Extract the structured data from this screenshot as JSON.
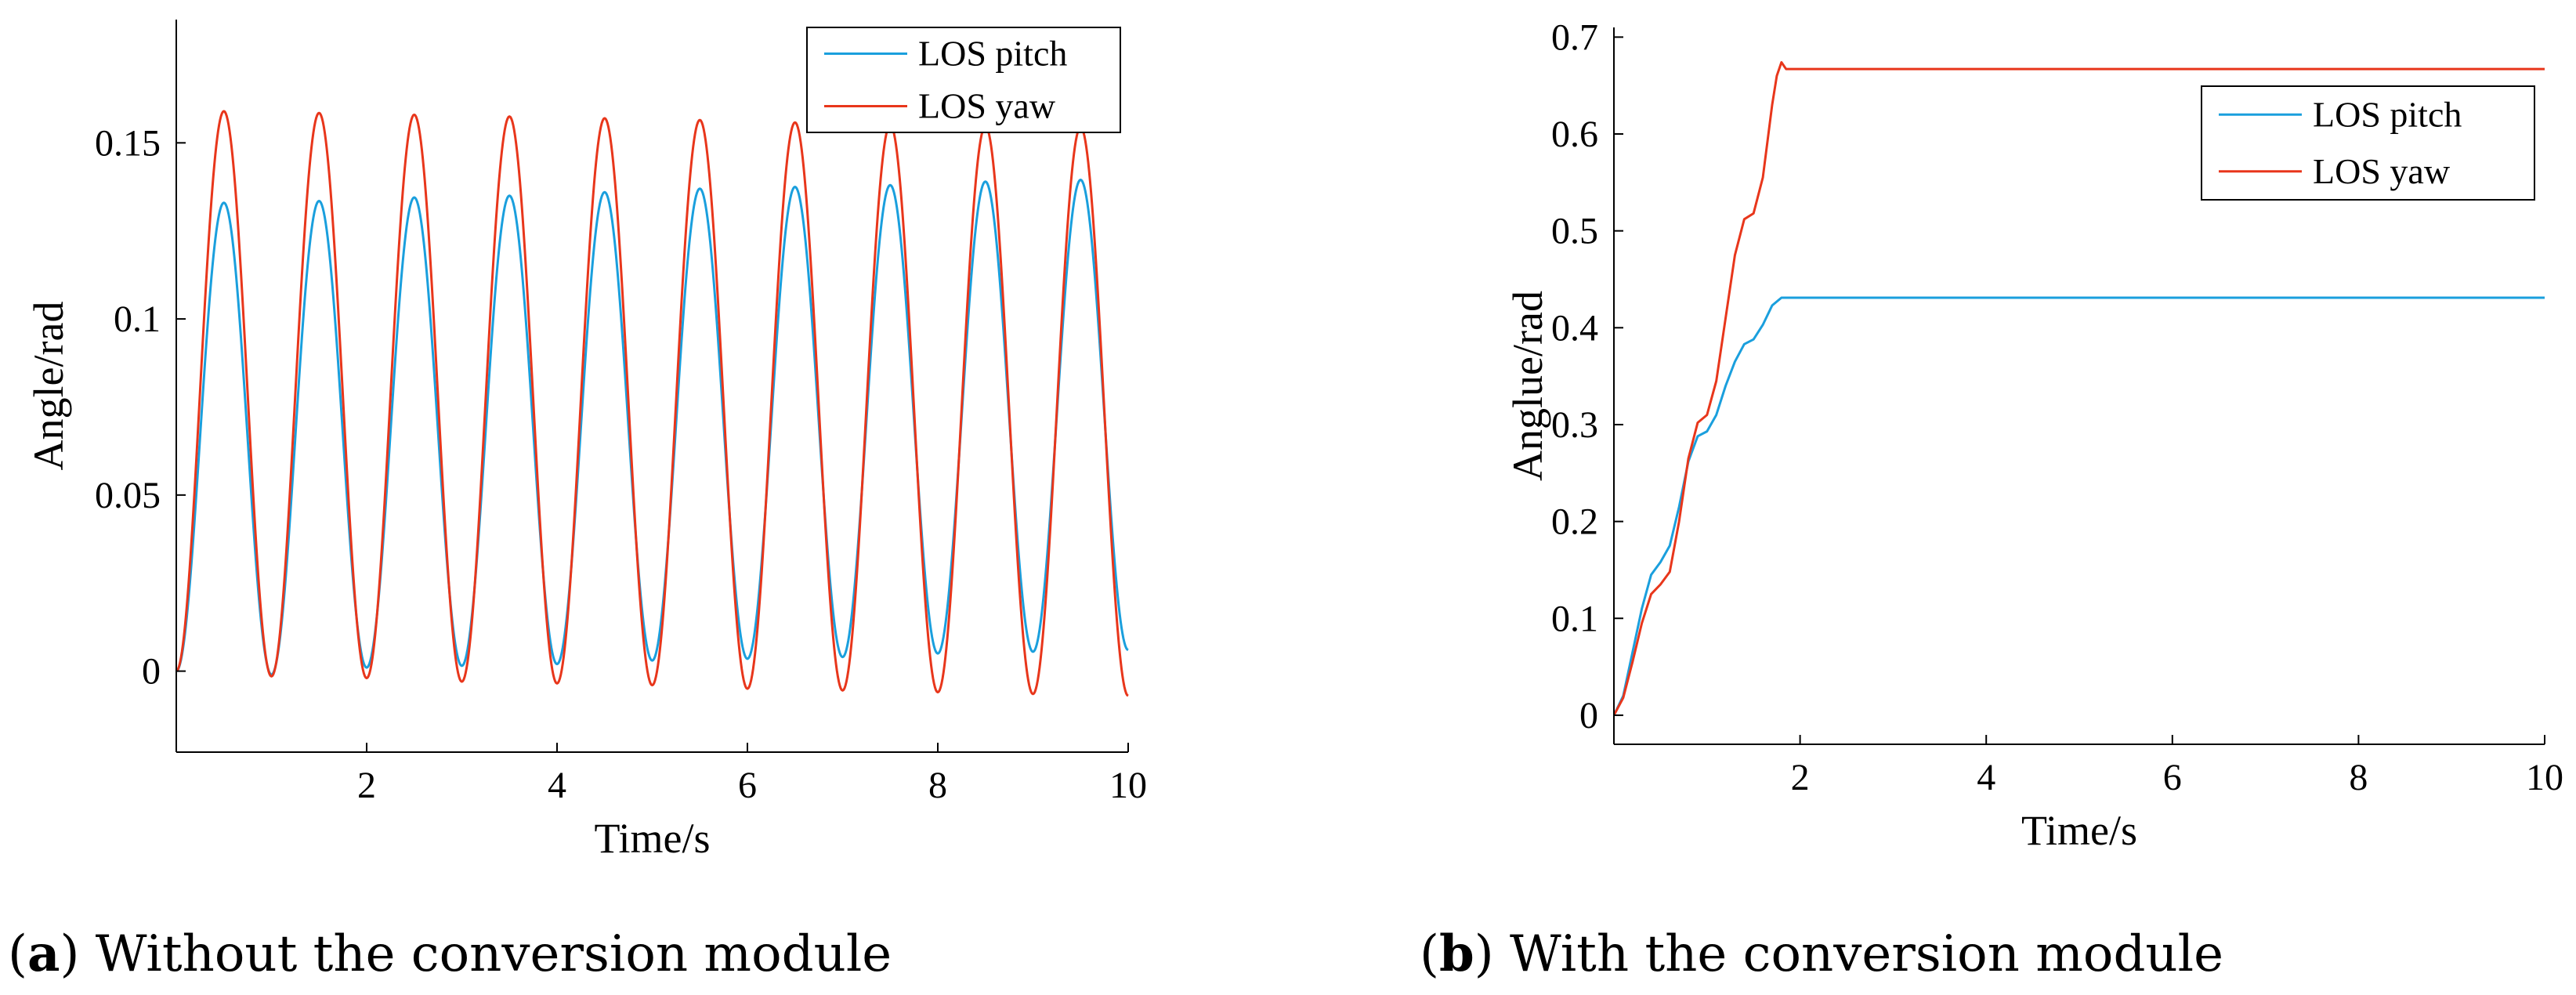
{
  "colors": {
    "pitch": "#1a9fdd",
    "yaw": "#e8361b",
    "axis": "#000000"
  },
  "captions": {
    "a": {
      "letter": "a",
      "text": "Without the conversion module"
    },
    "b": {
      "letter": "b",
      "text": "With the conversion module"
    }
  },
  "chart_data": [
    {
      "id": "a",
      "type": "line",
      "title": "",
      "xlabel": "Time/s",
      "ylabel": "Angle/rad",
      "xlim": [
        0,
        10
      ],
      "ylim": [
        -0.023,
        0.185
      ],
      "xticks": [
        2,
        4,
        6,
        8,
        10
      ],
      "yticks": [
        0,
        0.05,
        0.1,
        0.15
      ],
      "ytick_labels": [
        "0",
        "0.05",
        "0.1",
        "0.15"
      ],
      "grid": false,
      "legend_position": "top-right",
      "model": "sinusoid",
      "period": 1.0,
      "series": [
        {
          "name": "LOS pitch",
          "color_key": "pitch",
          "peaks": [
            0.133,
            0.1335,
            0.1345,
            0.135,
            0.136,
            0.137,
            0.1375,
            0.138,
            0.139,
            0.1395
          ],
          "troughs": [
            -0.001,
            0.001,
            0.0015,
            0.002,
            0.003,
            0.0035,
            0.004,
            0.005,
            0.0055
          ],
          "end_value": 0.006
        },
        {
          "name": "LOS yaw",
          "color_key": "yaw",
          "peaks": [
            0.159,
            0.1585,
            0.158,
            0.1575,
            0.157,
            0.1565,
            0.1558,
            0.1552,
            0.1548,
            0.1545
          ],
          "troughs": [
            -0.0015,
            -0.002,
            -0.003,
            -0.0035,
            -0.004,
            -0.005,
            -0.0055,
            -0.006,
            -0.0065
          ],
          "end_value": -0.007
        }
      ]
    },
    {
      "id": "b",
      "type": "line",
      "title": "",
      "xlabel": "Time/s",
      "ylabel": "Anglue/rad",
      "xlim": [
        0,
        10
      ],
      "ylim": [
        -0.03,
        0.71
      ],
      "xticks": [
        2,
        4,
        6,
        8,
        10
      ],
      "yticks": [
        0,
        0.1,
        0.2,
        0.3,
        0.4,
        0.5,
        0.6,
        0.7
      ],
      "ytick_labels": [
        "0",
        "0.1",
        "0.2",
        "0.3",
        "0.4",
        "0.5",
        "0.6",
        "0.7"
      ],
      "grid": false,
      "legend_position": "top-right",
      "model": "points",
      "series": [
        {
          "name": "LOS pitch",
          "color_key": "pitch",
          "x": [
            0,
            0.1,
            0.2,
            0.3,
            0.4,
            0.5,
            0.6,
            0.7,
            0.8,
            0.9,
            1.0,
            1.1,
            1.2,
            1.3,
            1.4,
            1.5,
            1.6,
            1.7,
            1.8,
            10
          ],
          "y": [
            0,
            0.02,
            0.065,
            0.11,
            0.145,
            0.158,
            0.175,
            0.215,
            0.262,
            0.288,
            0.293,
            0.31,
            0.34,
            0.365,
            0.383,
            0.388,
            0.403,
            0.423,
            0.431,
            0.431
          ]
        },
        {
          "name": "LOS yaw",
          "color_key": "yaw",
          "x": [
            0,
            0.1,
            0.2,
            0.3,
            0.4,
            0.5,
            0.6,
            0.7,
            0.8,
            0.9,
            1.0,
            1.1,
            1.2,
            1.3,
            1.4,
            1.5,
            1.6,
            1.7,
            1.75,
            1.8,
            1.85,
            1.9,
            10
          ],
          "y": [
            0,
            0.018,
            0.055,
            0.095,
            0.125,
            0.135,
            0.148,
            0.2,
            0.265,
            0.302,
            0.31,
            0.345,
            0.41,
            0.475,
            0.512,
            0.518,
            0.555,
            0.63,
            0.66,
            0.674,
            0.667,
            0.667,
            0.667
          ]
        }
      ]
    }
  ]
}
